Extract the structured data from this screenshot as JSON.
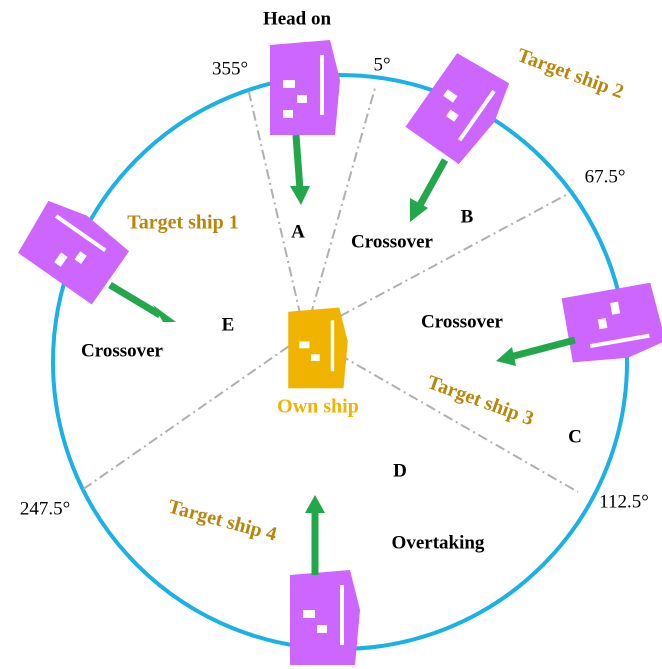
{
  "labels": {
    "head_on": "Head on",
    "angle_355": "355°",
    "angle_5": "5°",
    "target_ship_2": "Target ship 2",
    "angle_67_5": "67.5°",
    "target_ship_1": "Target ship 1",
    "sector_a": "A",
    "sector_b": "B",
    "crossover_b": "Crossover",
    "crossover_c": "Crossover",
    "sector_e": "E",
    "crossover_e": "Crossover",
    "own_ship": "Own ship",
    "target_ship_3": "Target ship 3",
    "sector_c": "C",
    "sector_d": "D",
    "angle_247_5": "247.5°",
    "angle_112_5": "112.5°",
    "target_ship_4": "Target ship 4",
    "overtaking": "Overtaking"
  }
}
